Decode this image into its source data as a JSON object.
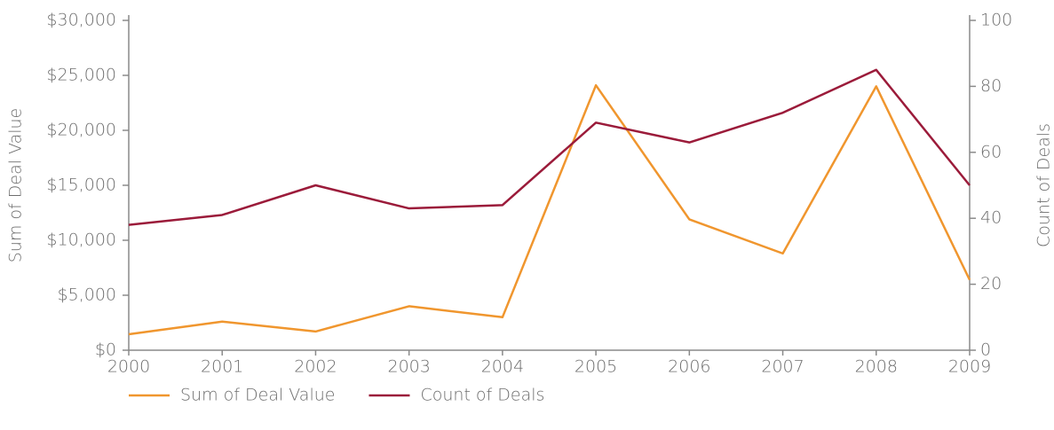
{
  "chart_data": {
    "type": "line",
    "categories": [
      "2000",
      "2001",
      "2002",
      "2003",
      "2004",
      "2005",
      "2006",
      "2007",
      "2008",
      "2009"
    ],
    "series": [
      {
        "name": "Sum of Deal Value",
        "color": "#f0962e",
        "values": [
          1450,
          2600,
          1700,
          4000,
          3000,
          24100,
          11900,
          8800,
          24000,
          6400
        ]
      },
      {
        "name": "Count of Deals",
        "color": "#9b1b3a",
        "axis": "y2",
        "values": [
          38,
          41,
          50,
          43,
          44,
          69,
          63,
          72,
          85,
          50
        ]
      }
    ],
    "ylabel": "Sum of Deal Value",
    "y2label": "Count of Deals",
    "ylim": [
      0,
      30000
    ],
    "yticks": [
      {
        "value": 0,
        "label": "$0"
      },
      {
        "value": 5000,
        "label": "$5,000"
      },
      {
        "value": 10000,
        "label": "$10,000"
      },
      {
        "value": 15000,
        "label": "$15,000"
      },
      {
        "value": 20000,
        "label": "$20,000"
      },
      {
        "value": 25000,
        "label": "$25,000"
      },
      {
        "value": 30000,
        "label": "$30,000"
      }
    ],
    "y2lim": [
      0,
      100
    ],
    "y2ticks": [
      0,
      20,
      40,
      60,
      80,
      100
    ],
    "grid": false,
    "legend": "bottom-left"
  }
}
